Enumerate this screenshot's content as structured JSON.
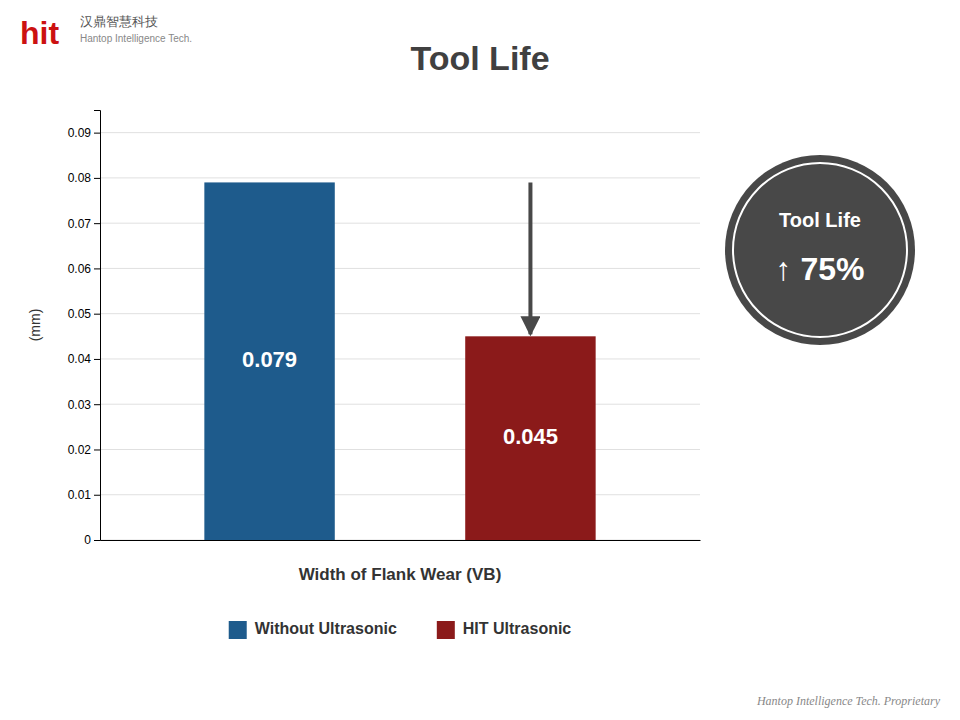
{
  "chart_data": {
    "type": "bar",
    "title": "Tool Life",
    "categories": [
      "Without Ultrasonic",
      "HIT Ultrasonic"
    ],
    "values": [
      0.079,
      0.045
    ],
    "colors": [
      "#1e5b8c",
      "#8b1a1a"
    ],
    "xlabel": "Width of Flank Wear (VB)",
    "ylabel": "(mm)",
    "ylim": [
      0,
      0.095
    ],
    "yticks": [
      0,
      0.01,
      0.02,
      0.03,
      0.04,
      0.05,
      0.06,
      0.07,
      0.08,
      0.09
    ],
    "grid": true,
    "legend": "bottom",
    "data_labels": true,
    "tick_labels": "y",
    "annotations": [
      "Tool Life",
      "↑ 75%",
      "Hantop Intelligence Tech. Proprietary",
      "hit",
      "汉鼎智慧科技",
      "Hantop Intelligence Tech."
    ]
  }
}
